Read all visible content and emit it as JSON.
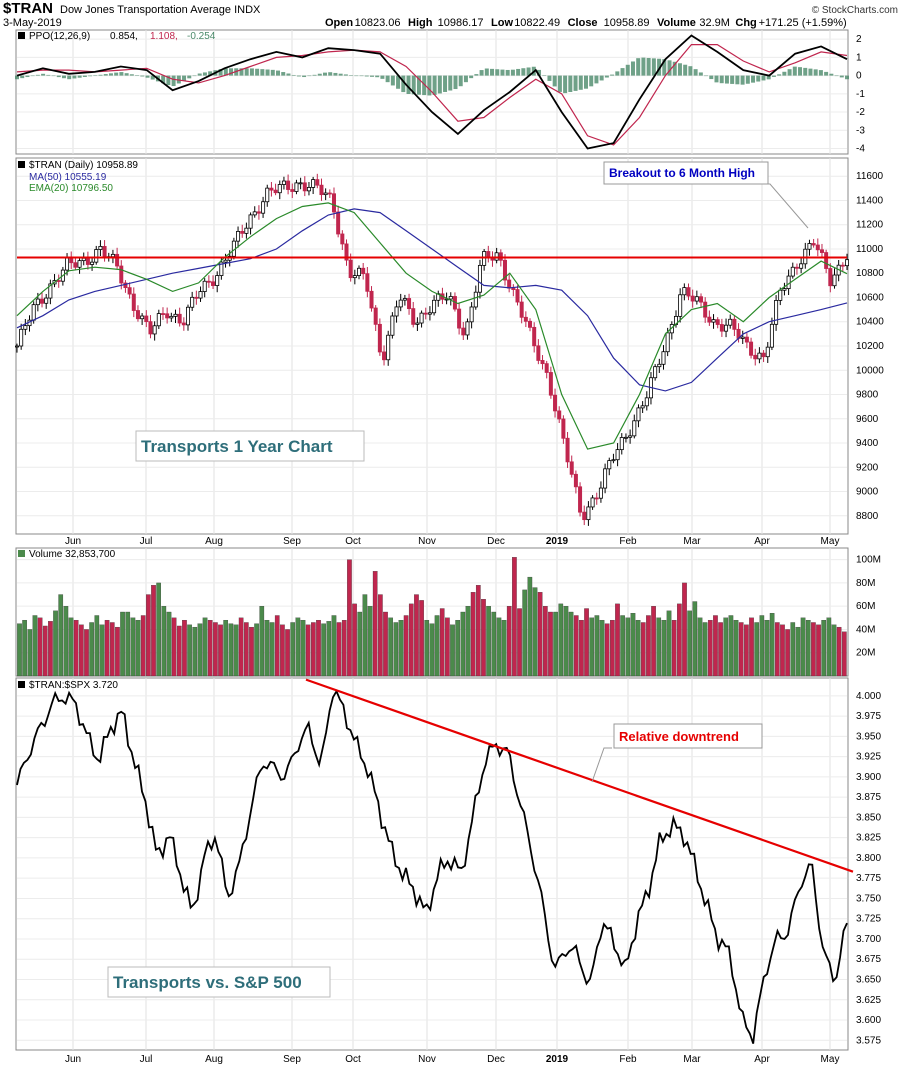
{
  "header": {
    "symbol": "$TRAN",
    "name": "Dow Jones Transportation Average INDX",
    "date": "3-May-2019",
    "ohlc": "Open 10823.06  High 10986.17  Low 10822.49  Close 10958.89  Volume 32.9M  Chg +171.25 (+1.59%)",
    "ohlc_parts": [
      {
        "k": "Open",
        "v": "10823.06"
      },
      {
        "k": "High",
        "v": "10986.17"
      },
      {
        "k": "Low",
        "v": "10822.49"
      },
      {
        "k": "Close",
        "v": "10958.89"
      },
      {
        "k": "Volume",
        "v": "32.9M"
      },
      {
        "k": "Chg",
        "v": "+171.25 (+1.59%)"
      }
    ],
    "watermark": "© StockCharts.com"
  },
  "panels": {
    "ppo": {
      "label_prefix": "PPO(12,26,9)",
      "v1": "0.854,",
      "v2": "1.108,",
      "v3": "-0.254"
    },
    "price": {
      "label": "$TRAN (Daily) 10958.89",
      "ma_label": "MA(50) 10555.19",
      "ema_label": "EMA(20) 10796.50",
      "annotation_breakout": "Breakout to 6 Month High",
      "annotation_title": "Transports 1 Year Chart"
    },
    "volume": {
      "label": "Volume 32,853,700"
    },
    "ratio": {
      "label": "$TRAN:$SPX 3.720",
      "annotation_trend": "Relative downtrend",
      "annotation_title": "Transports vs. S&P 500"
    }
  },
  "colors": {
    "up": "#4b8a4b",
    "down": "#c0264e",
    "ma50": "#2a2aa0",
    "ema20": "#2a8a2a",
    "resistance": "#e60000",
    "trend": "#e60000",
    "ppo_line": "#000000",
    "ppo_signal": "#c0264e",
    "ppo_hist": "#4b8a6a",
    "annotation_blue": "#0000c0",
    "annotation_red": "#e60000",
    "title_text": "#2e6e7a"
  },
  "chart_data": [
    {
      "type": "line",
      "name": "PPO(12,26,9)",
      "ylim": [
        -4.3,
        2.5
      ],
      "yticks": [
        2,
        1,
        0,
        -1,
        -2,
        -3,
        -4
      ],
      "x_labels": [
        "Jun",
        "Jul",
        "Aug",
        "Sep",
        "Oct",
        "Nov",
        "Dec",
        "2019",
        "Feb",
        "Mar",
        "Apr",
        "May"
      ],
      "series": [
        {
          "name": "PPO",
          "values": [
            0.0,
            0.4,
            0.1,
            0.2,
            0.5,
            0.3,
            -0.8,
            -0.3,
            0.4,
            0.9,
            1.3,
            1.0,
            1.5,
            1.4,
            1.2,
            -0.5,
            -2.0,
            -3.2,
            -1.9,
            -0.9,
            0.3,
            -2.0,
            -4.0,
            -3.7,
            -1.3,
            0.9,
            2.2,
            1.3,
            0.3,
            0.0,
            1.2,
            1.6,
            0.9
          ]
        },
        {
          "name": "Signal",
          "values": [
            0.2,
            0.3,
            0.3,
            0.2,
            0.3,
            0.4,
            -0.2,
            -0.4,
            0.0,
            0.5,
            1.0,
            1.1,
            1.3,
            1.4,
            1.3,
            0.5,
            -0.9,
            -2.5,
            -2.3,
            -1.2,
            -0.2,
            -1.0,
            -3.3,
            -3.8,
            -2.3,
            0.0,
            1.7,
            1.7,
            0.8,
            0.2,
            0.7,
            1.3,
            1.1
          ]
        }
      ]
    },
    {
      "type": "line",
      "name": "$TRAN (Daily)",
      "ylim": [
        8650,
        11750
      ],
      "yticks": [
        11600,
        11400,
        11200,
        11000,
        10800,
        10600,
        10400,
        10200,
        10000,
        9800,
        9600,
        9400,
        9200,
        9000,
        8800
      ],
      "resistance": 10930,
      "series": [
        {
          "name": "$TRAN",
          "values": [
            10200,
            10500,
            10700,
            10850,
            10900,
            11000,
            10850,
            10550,
            10300,
            10500,
            10400,
            10650,
            10800,
            11000,
            11250,
            11450,
            11500,
            11550,
            11500,
            11400,
            10800,
            10750,
            10100,
            10600,
            10400,
            10550,
            10600,
            10300,
            10900,
            10950,
            10600,
            10250,
            9950,
            9350,
            8800,
            9000,
            9300,
            9550,
            9800,
            10200,
            10650,
            10550,
            10400,
            10350,
            10200,
            10100,
            10650,
            10900,
            11050,
            10750,
            10958
          ]
        },
        {
          "name": "MA(50)",
          "values": [
            10350,
            10450,
            10580,
            10650,
            10700,
            10750,
            10800,
            10840,
            10880,
            10920,
            11000,
            11150,
            11280,
            11330,
            11300,
            11150,
            11000,
            10850,
            10700,
            10680,
            10700,
            10660,
            10450,
            10100,
            9880,
            9830,
            9900,
            10100,
            10300,
            10400,
            10450,
            10500,
            10555
          ]
        },
        {
          "name": "EMA(20)",
          "values": [
            10450,
            10650,
            10820,
            10850,
            10830,
            10750,
            10650,
            10720,
            10930,
            11100,
            11250,
            11350,
            11380,
            11300,
            11050,
            10800,
            10650,
            10550,
            10620,
            10800,
            10500,
            9800,
            9350,
            9400,
            9800,
            10300,
            10500,
            10550,
            10400,
            10600,
            10750,
            10900,
            10796
          ]
        }
      ]
    },
    {
      "type": "bar",
      "name": "Volume",
      "ylim": [
        0,
        110
      ],
      "yticks": [
        100,
        80,
        60,
        40,
        20
      ],
      "ytick_labels": [
        "100M",
        "80M",
        "60M",
        "40M",
        "20M"
      ],
      "values": [
        45,
        48,
        40,
        52,
        50,
        43,
        47,
        56,
        70,
        60,
        50,
        48,
        44,
        40,
        46,
        52,
        44,
        48,
        46,
        42,
        55,
        55,
        50,
        48,
        52,
        70,
        78,
        80,
        60,
        55,
        50,
        43,
        48,
        44,
        42,
        45,
        50,
        48,
        46,
        44,
        48,
        45,
        44,
        50,
        46,
        42,
        45,
        60,
        48,
        46,
        52,
        44,
        40,
        46,
        50,
        48,
        44,
        46,
        48,
        45,
        47,
        52,
        46,
        48,
        100,
        62,
        55,
        70,
        60,
        90,
        70,
        55,
        50,
        46,
        48,
        52,
        62,
        70,
        65,
        48,
        45,
        52,
        58,
        50,
        44,
        48,
        55,
        60,
        72,
        78,
        66,
        60,
        55,
        50,
        48,
        60,
        102,
        58,
        74,
        85,
        76,
        72,
        60,
        55,
        55,
        62,
        60,
        55,
        52,
        48,
        58,
        50,
        52,
        48,
        45,
        48,
        62,
        52,
        50,
        54,
        48,
        46,
        52,
        60,
        50,
        48,
        56,
        48,
        62,
        80,
        56,
        64,
        50,
        46,
        48,
        52,
        46,
        50,
        52,
        48,
        46,
        44,
        50,
        46,
        52,
        48,
        54,
        46,
        44,
        40,
        46,
        42,
        50,
        48,
        46,
        44,
        48,
        50,
        44,
        42,
        38
      ]
    },
    {
      "type": "line",
      "name": "$TRAN:$SPX",
      "ylim": [
        3.563,
        4.022
      ],
      "yticks": [
        4.0,
        3.975,
        3.95,
        3.925,
        3.9,
        3.875,
        3.85,
        3.825,
        3.8,
        3.775,
        3.75,
        3.725,
        3.7,
        3.675,
        3.65,
        3.625,
        3.6,
        3.575
      ],
      "values": [
        3.89,
        3.93,
        3.96,
        3.99,
        4.0,
        3.99,
        3.95,
        3.92,
        3.96,
        3.98,
        3.92,
        3.87,
        3.8,
        3.83,
        3.78,
        3.73,
        3.8,
        3.83,
        3.75,
        3.79,
        3.86,
        3.92,
        3.91,
        3.9,
        3.94,
        3.96,
        3.91,
        4.01,
        3.98,
        3.94,
        3.91,
        3.86,
        3.81,
        3.78,
        3.76,
        3.73,
        3.78,
        3.8,
        3.78,
        3.85,
        3.92,
        3.94,
        3.93,
        3.87,
        3.81,
        3.74,
        3.66,
        3.69,
        3.68,
        3.64,
        3.72,
        3.7,
        3.66,
        3.72,
        3.76,
        3.82,
        3.84,
        3.83,
        3.79,
        3.74,
        3.7,
        3.68,
        3.6,
        3.58,
        3.66,
        3.7,
        3.71,
        3.77,
        3.79,
        3.68,
        3.65,
        3.72
      ],
      "trendline": [
        [
          0,
          4.02
        ],
        [
          1,
          3.783
        ]
      ]
    }
  ]
}
